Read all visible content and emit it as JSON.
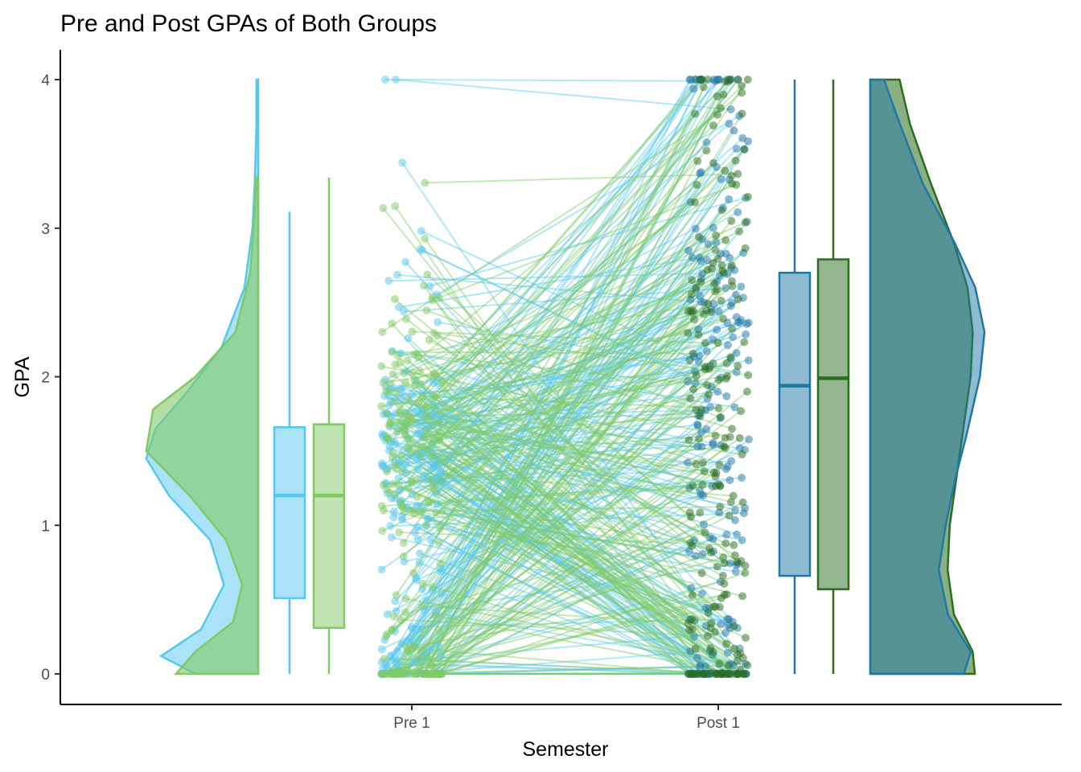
{
  "chart_data": {
    "type": "raincloud",
    "title": "Pre and Post GPAs of Both Groups",
    "xlabel": "Semester",
    "ylabel": "GPA",
    "categories": [
      "Pre 1",
      "Post 1"
    ],
    "ylim": [
      0,
      4
    ],
    "yticks": [
      0,
      1,
      2,
      3,
      4
    ],
    "grid": false,
    "legend": "none",
    "series": [
      {
        "group": "blue",
        "colors": {
          "pre": "#56C8F0",
          "post": "#1F78A6"
        },
        "pre_box": {
          "min": 0,
          "q1": 0.51,
          "median": 1.2,
          "q3": 1.66,
          "max": 3.11
        },
        "post_box": {
          "min": 0,
          "q1": 0.66,
          "median": 1.94,
          "q3": 2.7,
          "max": 4.0
        }
      },
      {
        "group": "green",
        "colors": {
          "pre": "#80C966",
          "post": "#2A6E1E"
        },
        "pre_box": {
          "min": 0,
          "q1": 0.31,
          "median": 1.2,
          "q3": 1.68,
          "max": 3.34
        },
        "post_box": {
          "min": 0,
          "q1": 0.57,
          "median": 1.99,
          "q3": 2.79,
          "max": 4.0
        }
      }
    ],
    "pre_density": {
      "blue": [
        [
          0,
          0.55
        ],
        [
          0.12,
          0.85
        ],
        [
          0.3,
          0.5
        ],
        [
          0.6,
          0.3
        ],
        [
          0.9,
          0.42
        ],
        [
          1.2,
          0.78
        ],
        [
          1.45,
          0.98
        ],
        [
          1.65,
          0.9
        ],
        [
          1.9,
          0.62
        ],
        [
          2.2,
          0.32
        ],
        [
          2.6,
          0.12
        ],
        [
          3.0,
          0.05
        ],
        [
          3.3,
          0.03
        ],
        [
          3.7,
          0.015
        ],
        [
          4.0,
          0.015
        ]
      ],
      "green": [
        [
          0,
          0.72
        ],
        [
          0.15,
          0.55
        ],
        [
          0.35,
          0.22
        ],
        [
          0.6,
          0.14
        ],
        [
          0.9,
          0.28
        ],
        [
          1.2,
          0.6
        ],
        [
          1.5,
          0.98
        ],
        [
          1.78,
          0.92
        ],
        [
          2.0,
          0.55
        ],
        [
          2.3,
          0.2
        ],
        [
          2.7,
          0.07
        ],
        [
          3.1,
          0.03
        ],
        [
          3.34,
          0.02
        ]
      ]
    },
    "post_density": {
      "blue": [
        [
          0,
          0.82
        ],
        [
          0.15,
          0.88
        ],
        [
          0.4,
          0.68
        ],
        [
          0.7,
          0.6
        ],
        [
          1.0,
          0.66
        ],
        [
          1.3,
          0.74
        ],
        [
          1.6,
          0.84
        ],
        [
          2.0,
          0.96
        ],
        [
          2.3,
          1.0
        ],
        [
          2.6,
          0.92
        ],
        [
          2.9,
          0.74
        ],
        [
          3.3,
          0.46
        ],
        [
          3.7,
          0.26
        ],
        [
          4.0,
          0.12
        ]
      ],
      "green": [
        [
          0,
          1.0
        ],
        [
          0.15,
          0.98
        ],
        [
          0.4,
          0.8
        ],
        [
          0.7,
          0.74
        ],
        [
          1.0,
          0.76
        ],
        [
          1.3,
          0.82
        ],
        [
          1.6,
          0.88
        ],
        [
          2.0,
          0.96
        ],
        [
          2.3,
          0.98
        ],
        [
          2.6,
          0.93
        ],
        [
          2.9,
          0.8
        ],
        [
          3.3,
          0.58
        ],
        [
          3.7,
          0.38
        ],
        [
          4.0,
          0.28
        ]
      ]
    }
  }
}
